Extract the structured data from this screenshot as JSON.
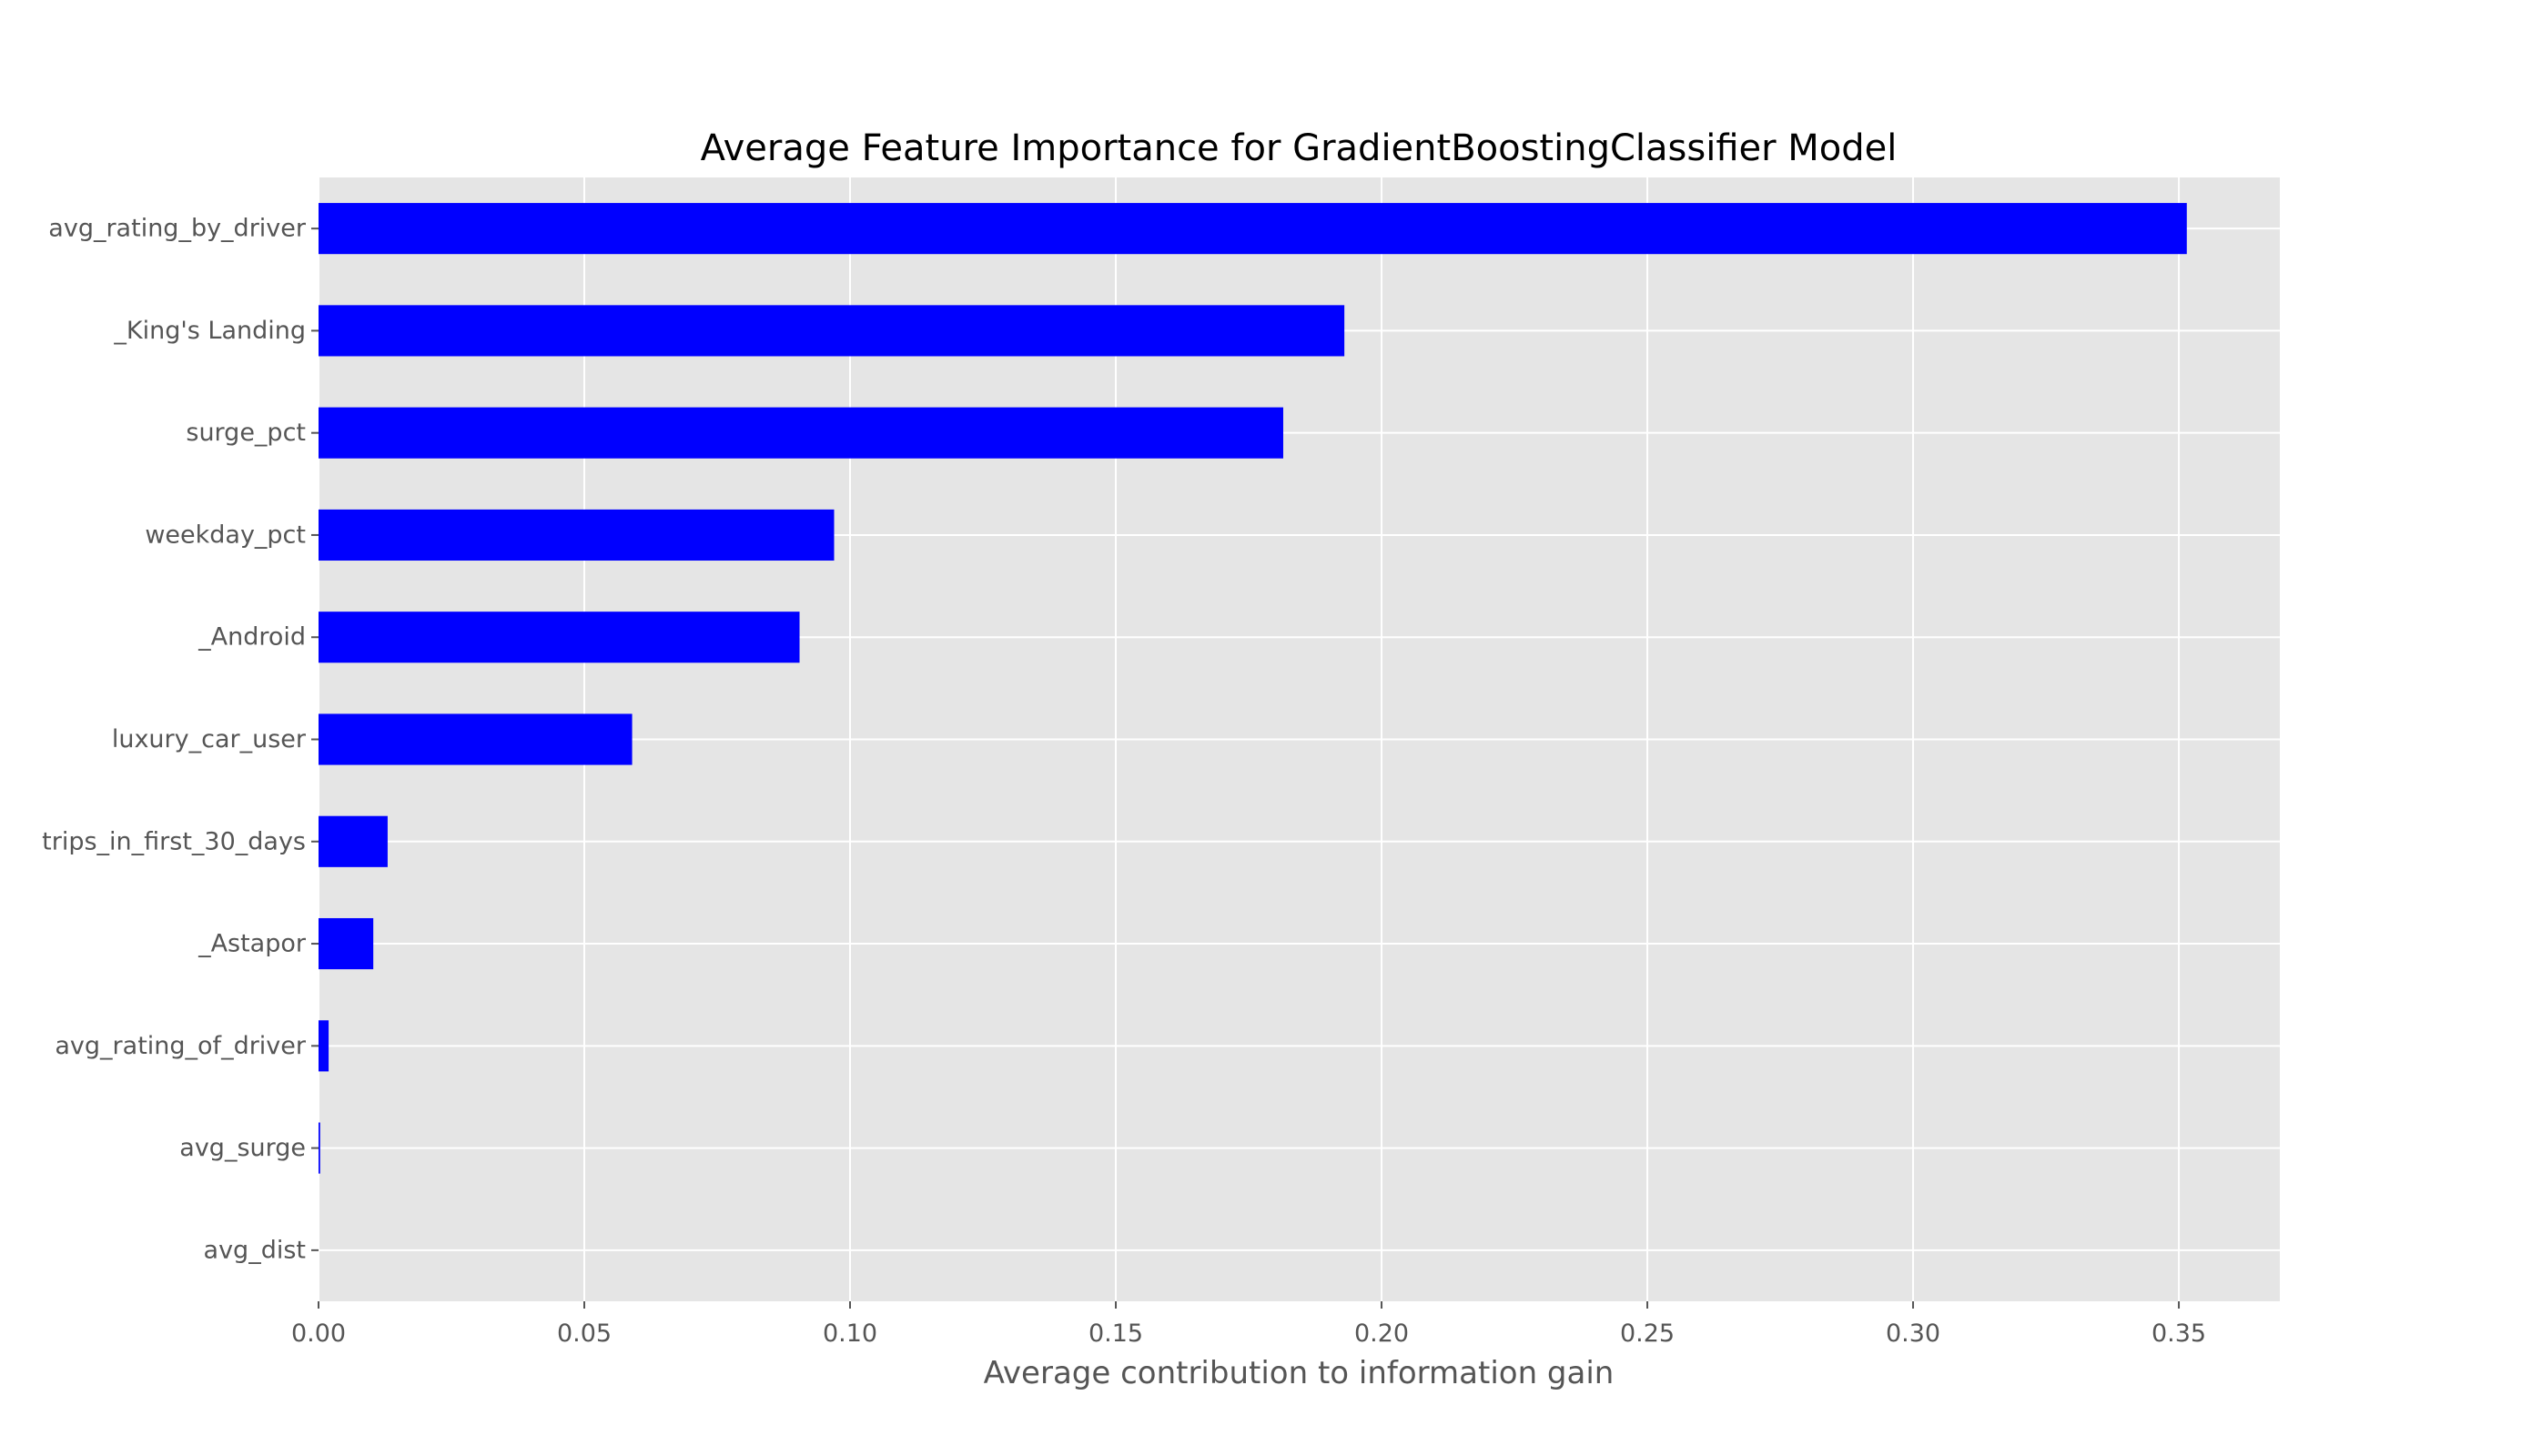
{
  "chart_data": {
    "type": "bar",
    "orientation": "horizontal",
    "title": "Average Feature Importance for GradientBoostingClassifier Model",
    "xlabel": "Average contribution to information gain",
    "ylabel": "",
    "categories": [
      "avg_rating_by_driver",
      "_King's Landing",
      "surge_pct",
      "weekday_pct",
      "_Android",
      "luxury_car_user",
      "trips_in_first_30_days",
      "_Astapor",
      "avg_rating_of_driver",
      "avg_surge",
      "avg_dist"
    ],
    "values": [
      0.3515,
      0.193,
      0.1815,
      0.097,
      0.0905,
      0.059,
      0.013,
      0.0103,
      0.0019,
      0.0003,
      0.0
    ],
    "xlim": [
      0.0,
      0.369
    ],
    "xticks": [
      "0.00",
      "0.05",
      "0.10",
      "0.15",
      "0.20",
      "0.25",
      "0.30",
      "0.35"
    ],
    "xtick_values": [
      0.0,
      0.05,
      0.1,
      0.15,
      0.2,
      0.25,
      0.3,
      0.35
    ],
    "grid": true,
    "legend": "none",
    "colors": {
      "bar": "#0000ff",
      "plot_background": "#e5e5e5",
      "grid": "#ffffff",
      "tick_text": "#555555",
      "title_text": "#000000"
    }
  }
}
